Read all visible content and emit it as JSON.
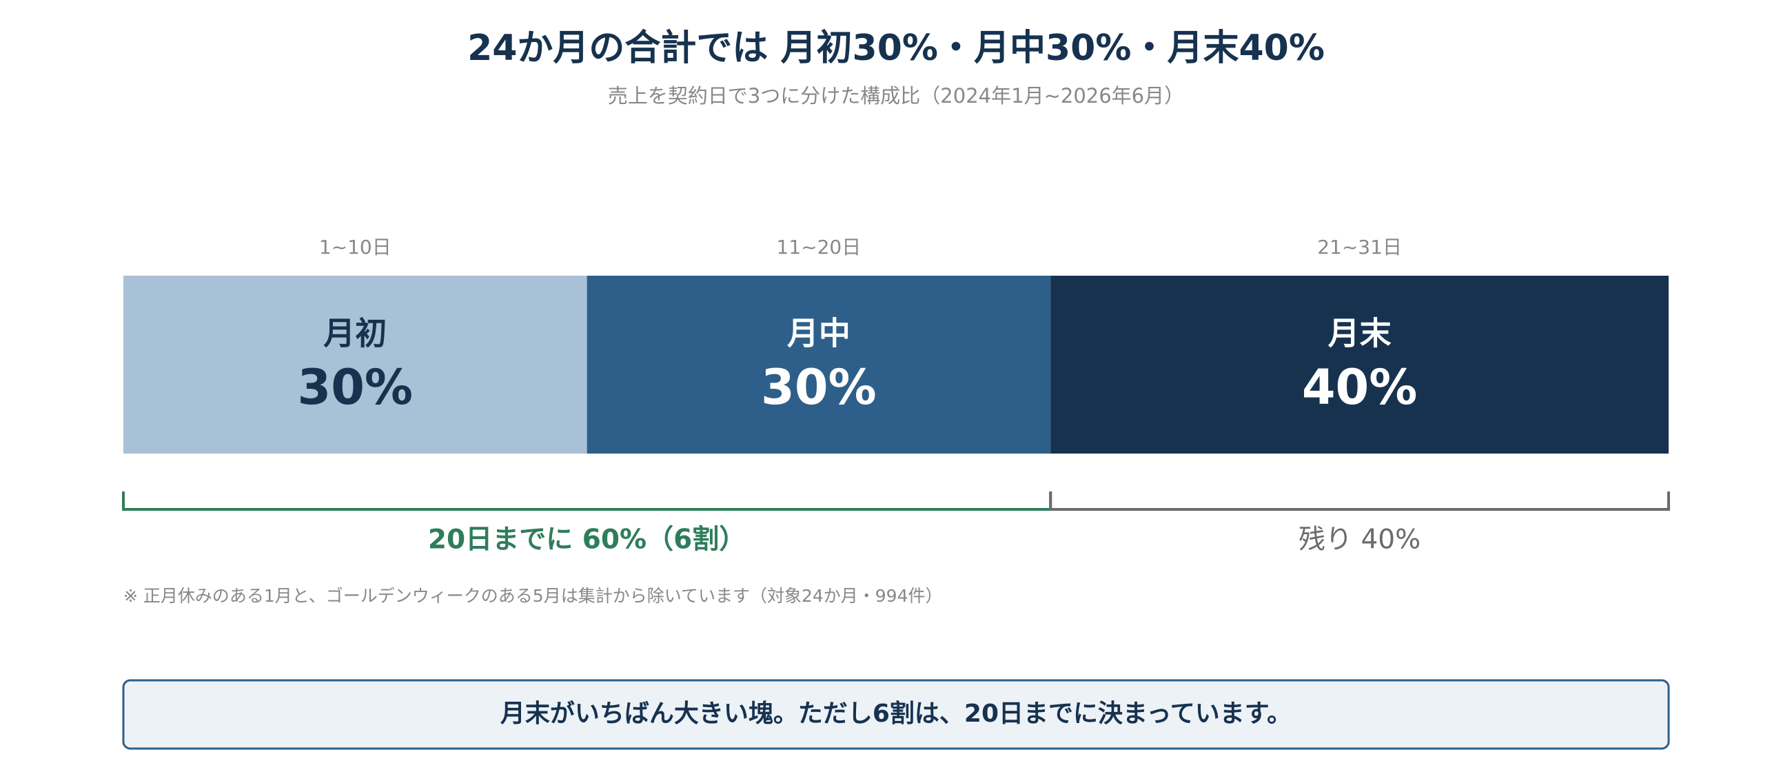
{
  "chart_data": {
    "type": "stacked-bar",
    "title": "24か月の合計では 月初30%・月中30%・月末40%",
    "subtitle": "売上を契約日で3つに分けた構成比（2024年1月~2026年6月）",
    "xlim": [
      0,
      100
    ],
    "series": [
      {
        "name": "月初",
        "range": "1~10日",
        "color": "#a9c1d6",
        "text_color": "#16324f",
        "values": [
          30
        ],
        "value_labels": [
          "30%"
        ]
      },
      {
        "name": "月中",
        "range": "11~20日",
        "color": "#2d5f8a",
        "text_color": "#ffffff",
        "values": [
          30
        ],
        "value_labels": [
          "30%"
        ]
      },
      {
        "name": "月末",
        "range": "21~31日",
        "color": "#16324f",
        "text_color": "#ffffff",
        "values": [
          40
        ],
        "value_labels": [
          "40%"
        ]
      }
    ],
    "annotations": [
      {
        "text": "20日までに 60%（6割）",
        "color": "#2e7d5b"
      },
      {
        "text": "残り 40%",
        "color": "#6b6b6b"
      }
    ],
    "note": "※ 正月休みのある1月と、ゴールデンウィークのある5月は集計から除いています（対象24か月・994件）",
    "callout": "月末がいちばん大きい塊。ただし6割は、20日までに決まっています。"
  }
}
